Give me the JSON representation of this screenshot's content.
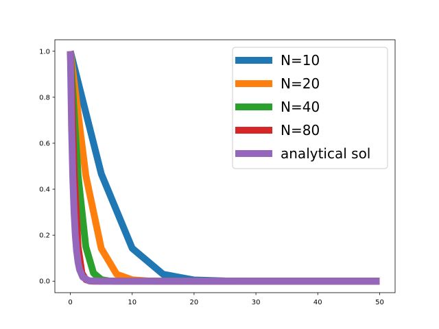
{
  "chart_data": {
    "type": "line",
    "title": "",
    "xlabel": "",
    "ylabel": "",
    "xlim": [
      -2.5,
      52.5
    ],
    "ylim": [
      -0.05,
      1.05
    ],
    "x_ticks": [
      0,
      10,
      20,
      30,
      40,
      50
    ],
    "y_ticks": [
      0.0,
      0.2,
      0.4,
      0.6,
      0.8,
      1.0
    ],
    "x_tick_labels": [
      "0",
      "10",
      "20",
      "30",
      "40",
      "50"
    ],
    "y_tick_labels": [
      "0.0",
      "0.2",
      "0.4",
      "0.6",
      "0.8",
      "1.0"
    ],
    "grid": false,
    "legend_position": "top-right",
    "series": [
      {
        "name": "N=10",
        "color": "#1f77b4",
        "x": [
          0,
          5,
          10,
          15,
          20,
          25,
          30,
          35,
          40,
          45,
          50
        ],
        "y": [
          1.0,
          0.467,
          0.143,
          0.03,
          0.005,
          0.001,
          0.0,
          0.0,
          0.0,
          0.0,
          0.0
        ]
      },
      {
        "name": "N=20",
        "color": "#ff7f0e",
        "x": [
          0,
          2.5,
          5,
          7.5,
          10,
          12.5,
          15,
          20,
          25,
          30,
          40,
          50
        ],
        "y": [
          1.0,
          0.46,
          0.142,
          0.03,
          0.006,
          0.001,
          0.0,
          0.0,
          0.0,
          0.0,
          0.0,
          0.0
        ]
      },
      {
        "name": "N=40",
        "color": "#2ca02c",
        "x": [
          0,
          1.25,
          2.5,
          3.75,
          5,
          6.25,
          7.5,
          10,
          15,
          20,
          30,
          40,
          50
        ],
        "y": [
          1.0,
          0.46,
          0.15,
          0.035,
          0.007,
          0.001,
          0.0,
          0.0,
          0.0,
          0.0,
          0.0,
          0.0,
          0.0
        ]
      },
      {
        "name": "N=80",
        "color": "#d62728",
        "x": [
          0,
          0.625,
          1.25,
          1.875,
          2.5,
          3.125,
          3.75,
          5,
          10,
          20,
          30,
          40,
          50
        ],
        "y": [
          1.0,
          0.46,
          0.15,
          0.035,
          0.007,
          0.001,
          0.0,
          0.0,
          0.0,
          0.0,
          0.0,
          0.0,
          0.0
        ]
      },
      {
        "name": "analytical sol",
        "color": "#9467bd",
        "x": [
          0,
          0.2,
          0.4,
          0.6,
          0.8,
          1.0,
          1.25,
          1.5,
          2,
          3,
          5,
          10,
          20,
          30,
          40,
          50
        ],
        "y": [
          1.0,
          0.67,
          0.449,
          0.301,
          0.202,
          0.135,
          0.082,
          0.05,
          0.018,
          0.002,
          0.0,
          0.0,
          0.0,
          0.0,
          0.0,
          0.0
        ]
      }
    ]
  }
}
